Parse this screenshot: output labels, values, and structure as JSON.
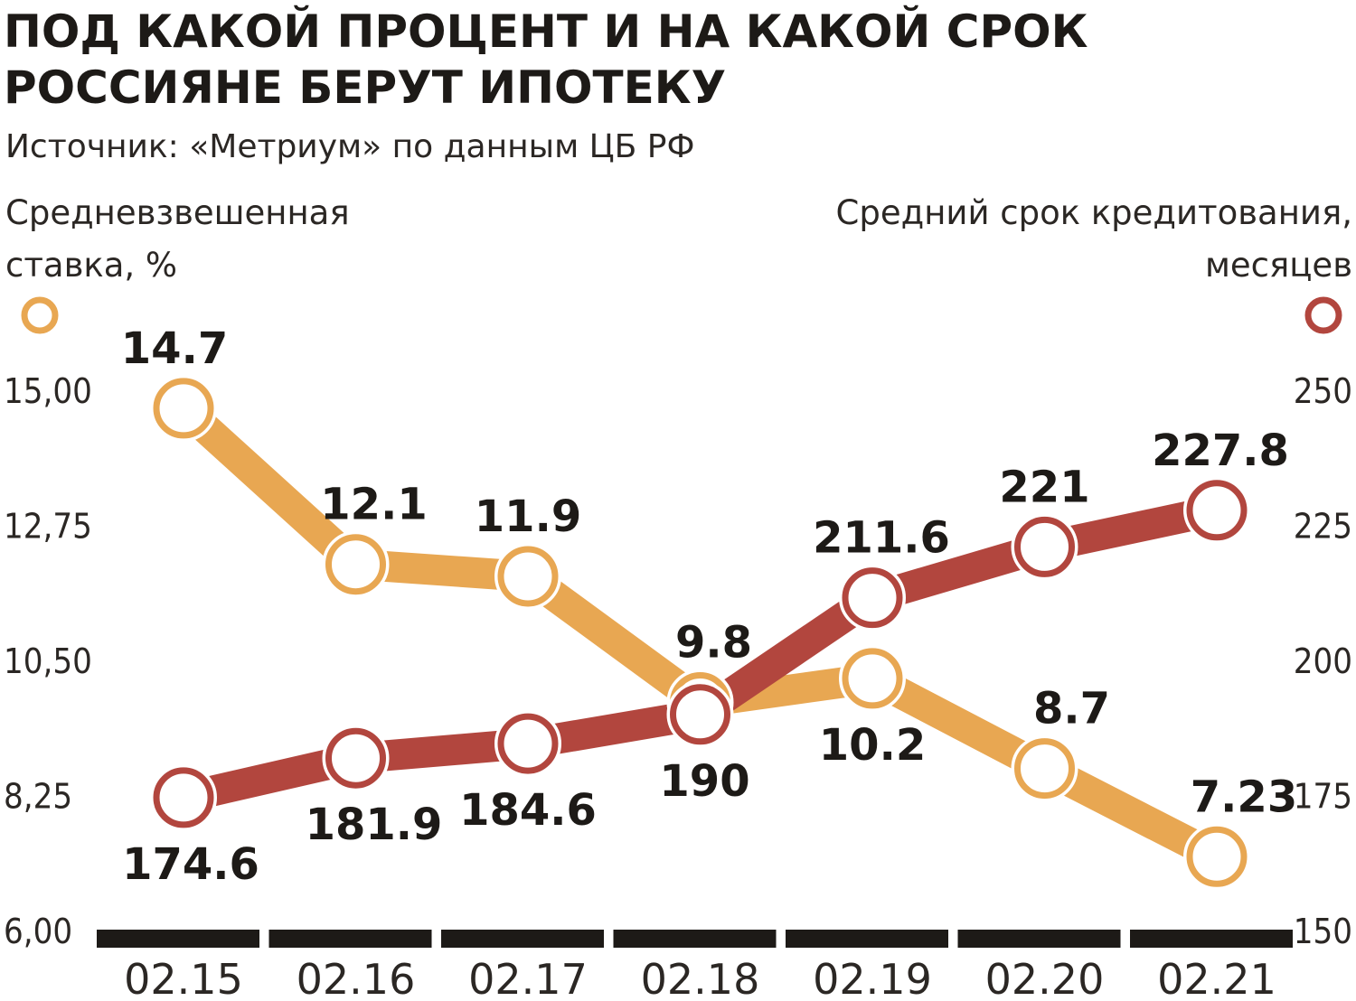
{
  "colors": {
    "rate": "#e8a752",
    "term": "#b2463e",
    "text": "#1d1a17",
    "axis_bar": "#1d1a17"
  },
  "chart_data": {
    "type": "line",
    "title": "ПОД КАКОЙ ПРОЦЕНТ И НА КАКОЙ СРОК РОССИЯНЕ БЕРУТ ИПОТЕКУ",
    "title_lines": [
      "ПОД КАКОЙ ПРОЦЕНТ И НА КАКОЙ СРОК",
      "РОССИЯНЕ БЕРУТ ИПОТЕКУ"
    ],
    "subtitle": "Источник: «Метриум» по данным ЦБ РФ",
    "categories": [
      "02.15",
      "02.16",
      "02.17",
      "02.18",
      "02.19",
      "02.20",
      "02.21"
    ],
    "y_left": {
      "label": "Средневзвешенная ставка, %",
      "label_lines": [
        "Средневзвешенная",
        "ставка, %"
      ],
      "range": [
        6,
        15
      ],
      "ticks": [
        "6,00",
        "8,25",
        "10,50",
        "12,75",
        "15,00"
      ],
      "tick_values": [
        6,
        8.25,
        10.5,
        12.75,
        15
      ]
    },
    "y_right": {
      "label": "Средний срок кредитования, месяцев",
      "label_lines": [
        "Средний срок кредитования,",
        "месяцев"
      ],
      "range": [
        150,
        250
      ],
      "ticks": [
        "150",
        "175",
        "200",
        "225",
        "250"
      ],
      "tick_values": [
        150,
        175,
        200,
        225,
        250
      ]
    },
    "series": [
      {
        "key": "rate",
        "axis": "left",
        "values": [
          14.7,
          12.1,
          11.9,
          9.8,
          10.2,
          8.7,
          7.23
        ],
        "labels": [
          "14.7",
          "12.1",
          "11.9",
          "9.8",
          "10.2",
          "8.7",
          "7.23"
        ]
      },
      {
        "key": "term",
        "axis": "right",
        "values": [
          174.6,
          181.9,
          184.6,
          190,
          211.6,
          221,
          227.8
        ],
        "labels": [
          "174.6",
          "181.9",
          "184.6",
          "190",
          "211.6",
          "221",
          "227.8"
        ]
      }
    ],
    "grid": false,
    "legend": "markers-under-axis-labels"
  }
}
